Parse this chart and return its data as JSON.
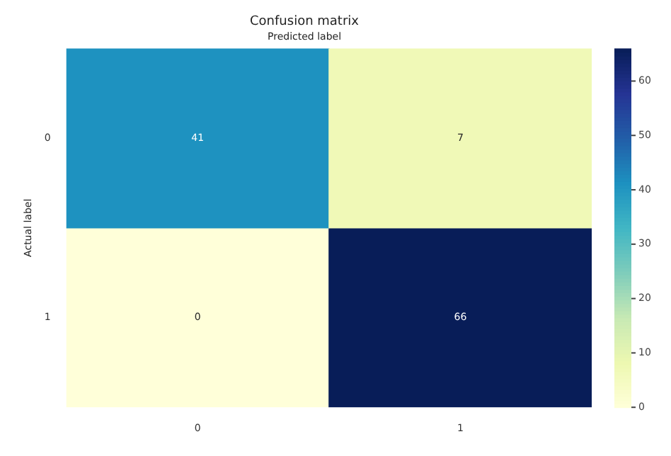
{
  "chart_data": {
    "type": "heatmap",
    "title": "Confusion matrix",
    "xlabel": "Predicted label",
    "ylabel": "Actual label",
    "categories": [
      "0",
      "1"
    ],
    "y_categories": [
      "0",
      "1"
    ],
    "cells": [
      [
        41,
        7
      ],
      [
        0,
        66
      ]
    ],
    "data_labels": true,
    "clim": [
      0,
      66
    ],
    "cticks": [
      0,
      10,
      20,
      30,
      40,
      50,
      60
    ]
  }
}
